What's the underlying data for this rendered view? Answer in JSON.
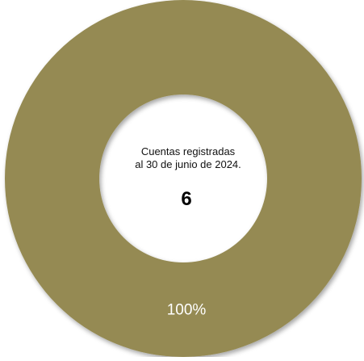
{
  "chart_data": {
    "type": "pie",
    "variant": "donut",
    "categories": [
      ""
    ],
    "values": [
      6
    ],
    "percent_labels": [
      "100%"
    ],
    "colors": [
      "#958A52"
    ],
    "center": {
      "caption_line1": "Cuentas registradas",
      "caption_line2": "al 30 de junio de 2024.",
      "total": "6"
    },
    "legend": "none"
  }
}
